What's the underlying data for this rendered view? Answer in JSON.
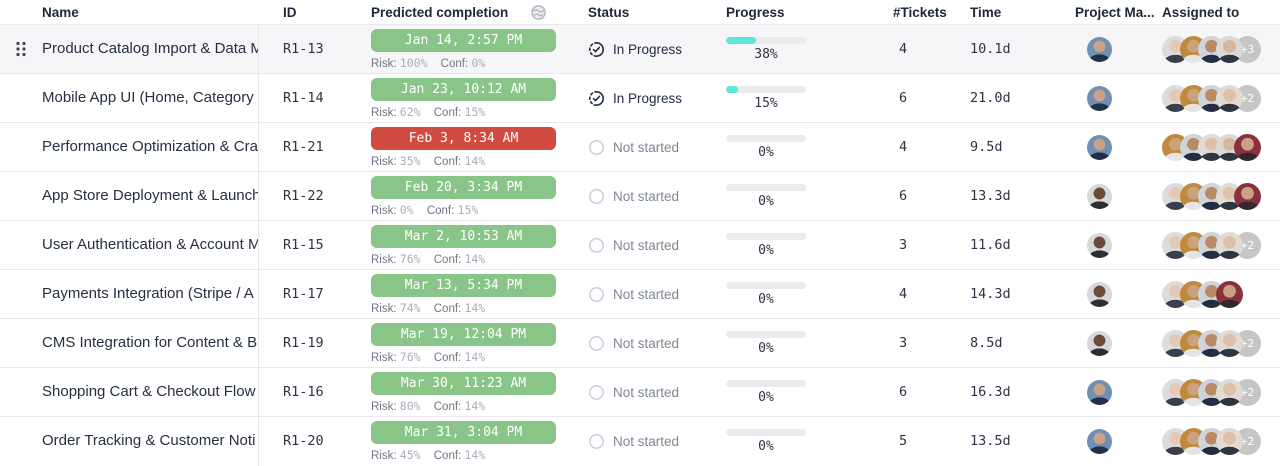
{
  "table": {
    "headers": {
      "name": "Name",
      "id": "ID",
      "predicted": "Predicted completion",
      "status": "Status",
      "progress": "Progress",
      "tickets": "#Tickets",
      "time": "Time",
      "pm": "Project Ma...",
      "assigned": "Assigned to"
    },
    "labels": {
      "risk": "Risk:",
      "conf": "Conf:"
    },
    "rows": [
      {
        "name": "Product Catalog Import & Data M",
        "id": "R1-13",
        "predicted": "Jan 14, 2:57 PM",
        "predicted_state": "green",
        "risk": "100%",
        "conf": "0%",
        "status": "In Progress",
        "status_key": "in_progress",
        "progress": "38%",
        "progress_value": 38,
        "tickets": "4",
        "time": "10.1d",
        "pm": "pmBlue",
        "assigned": [
          "w1",
          "tan",
          "navy",
          "grayman"
        ],
        "overflow": "+3",
        "drag_handle": true
      },
      {
        "name": "Mobile App UI (Home, Category",
        "id": "R1-14",
        "predicted": "Jan 23, 10:12 AM",
        "predicted_state": "green",
        "risk": "62%",
        "conf": "15%",
        "status": "In Progress",
        "status_key": "in_progress",
        "progress": "15%",
        "progress_value": 15,
        "tickets": "6",
        "time": "21.0d",
        "pm": "pmBlue",
        "assigned": [
          "w1",
          "tan",
          "navy",
          "w2"
        ],
        "overflow": "+2",
        "drag_handle": false
      },
      {
        "name": "Performance Optimization & Cra",
        "id": "R1-21",
        "predicted": "Feb 3, 8:34 AM",
        "predicted_state": "red",
        "risk": "35%",
        "conf": "14%",
        "status": "Not started",
        "status_key": "not_started",
        "progress": "0%",
        "progress_value": 0,
        "tickets": "4",
        "time": "9.5d",
        "pm": "pmBlue",
        "assigned": [
          "tan",
          "navy",
          "w2",
          "grayman",
          "red"
        ],
        "overflow": null,
        "drag_handle": false
      },
      {
        "name": "App Store Deployment & Launch",
        "id": "R1-22",
        "predicted": "Feb 20, 3:34 PM",
        "predicted_state": "green",
        "risk": "0%",
        "conf": "15%",
        "status": "Not started",
        "status_key": "not_started",
        "progress": "0%",
        "progress_value": 0,
        "tickets": "6",
        "time": "13.3d",
        "pm": "pmDark",
        "assigned": [
          "w1",
          "tan",
          "navy",
          "w2",
          "red"
        ],
        "overflow": null,
        "drag_handle": false
      },
      {
        "name": "User Authentication & Account M",
        "id": "R1-15",
        "predicted": "Mar 2, 10:53 AM",
        "predicted_state": "green",
        "risk": "76%",
        "conf": "14%",
        "status": "Not started",
        "status_key": "not_started",
        "progress": "0%",
        "progress_value": 0,
        "tickets": "3",
        "time": "11.6d",
        "pm": "pmDark",
        "assigned": [
          "w1",
          "tan",
          "navy",
          "w2"
        ],
        "overflow": "+2",
        "drag_handle": false
      },
      {
        "name": "Payments Integration (Stripe / A",
        "id": "R1-17",
        "predicted": "Mar 13, 5:34 PM",
        "predicted_state": "green",
        "risk": "74%",
        "conf": "14%",
        "status": "Not started",
        "status_key": "not_started",
        "progress": "0%",
        "progress_value": 0,
        "tickets": "4",
        "time": "14.3d",
        "pm": "pmDark",
        "assigned": [
          "w1",
          "tan",
          "navy",
          "red"
        ],
        "overflow": null,
        "drag_handle": false
      },
      {
        "name": "CMS Integration for Content & B",
        "id": "R1-19",
        "predicted": "Mar 19, 12:04 PM",
        "predicted_state": "green",
        "risk": "76%",
        "conf": "14%",
        "status": "Not started",
        "status_key": "not_started",
        "progress": "0%",
        "progress_value": 0,
        "tickets": "3",
        "time": "8.5d",
        "pm": "pmDark",
        "assigned": [
          "w1",
          "tan",
          "navy",
          "w2"
        ],
        "overflow": "+2",
        "drag_handle": false
      },
      {
        "name": "Shopping Cart & Checkout Flow",
        "id": "R1-16",
        "predicted": "Mar 30, 11:23 AM",
        "predicted_state": "green",
        "risk": "80%",
        "conf": "14%",
        "status": "Not started",
        "status_key": "not_started",
        "progress": "0%",
        "progress_value": 0,
        "tickets": "6",
        "time": "16.3d",
        "pm": "pmBlue",
        "assigned": [
          "w1",
          "tan",
          "navy",
          "w2"
        ],
        "overflow": "+2",
        "drag_handle": false
      },
      {
        "name": "Order Tracking & Customer Noti",
        "id": "R1-20",
        "predicted": "Mar 31, 3:04 PM",
        "predicted_state": "green",
        "risk": "45%",
        "conf": "14%",
        "status": "Not started",
        "status_key": "not_started",
        "progress": "0%",
        "progress_value": 0,
        "tickets": "5",
        "time": "13.5d",
        "pm": "pmBlue",
        "assigned": [
          "w1",
          "tan",
          "navy",
          "w2"
        ],
        "overflow": "+2",
        "drag_handle": false
      }
    ]
  },
  "colors": {
    "badge_green": "#89c489",
    "badge_red": "#d14b41",
    "progress_fill": "#5ce8d5",
    "progress_track": "#ebebeb",
    "row_highlight": "#f6f6f8",
    "header_text": "#1e2738",
    "body_text": "#26303f",
    "muted_text": "#7f8795",
    "overflow_badge": "#c6c6c6"
  },
  "avatar_palette": {
    "pmBlue": {
      "bg": "#6f8fb5",
      "skin": "#c9a186",
      "shirt": "#223148"
    },
    "pmDark": {
      "bg": "#d8d8d8",
      "skin": "#6b4a38",
      "shirt": "#2d2d33"
    },
    "w1": {
      "bg": "#dcdcdc",
      "skin": "#e6c9b4",
      "shirt": "#3a3f4d"
    },
    "tan": {
      "bg": "#bf8a3e",
      "skin": "#caa27c",
      "shirt": "#e4e4e4"
    },
    "navy": {
      "bg": "#cfd4da",
      "skin": "#b98a63",
      "shirt": "#242e42"
    },
    "grayman": {
      "bg": "#d9d9d9",
      "skin": "#d9b69a",
      "shirt": "#2e3442"
    },
    "red": {
      "bg": "#8a3140",
      "skin": "#caa184",
      "shirt": "#33272b"
    },
    "w2": {
      "bg": "#e0dbd4",
      "skin": "#dfc0a8",
      "shirt": "#2f3542"
    }
  }
}
